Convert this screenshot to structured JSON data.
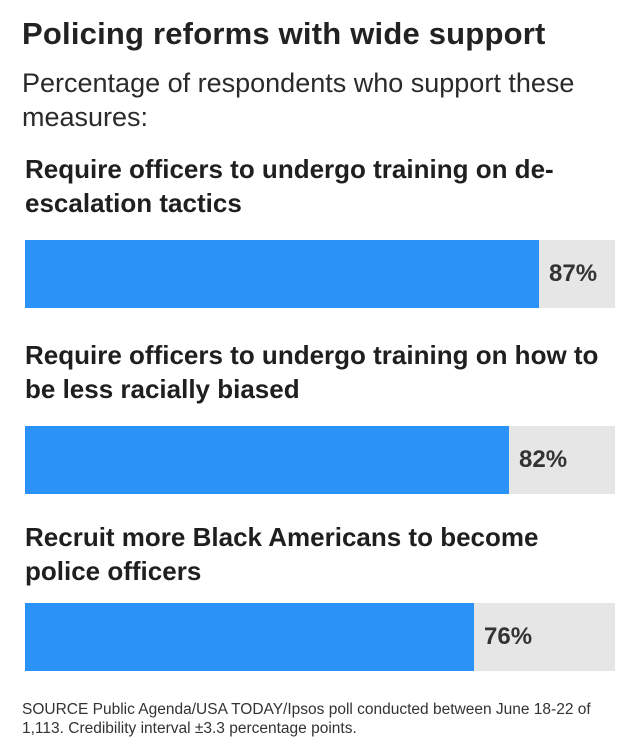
{
  "colors": {
    "bar": "#2b93f7",
    "track": "#e6e6e6"
  },
  "chart_data": {
    "type": "bar",
    "orientation": "horizontal",
    "title": "Policing reforms with wide support",
    "subtitle": "Percentage of respondents who support these measures:",
    "categories": [
      "Require officers to undergo training on de-escalation tactics",
      "Require officers to undergo training on how to be less racially biased",
      "Recruit more Black Americans to become police officers"
    ],
    "values": [
      87,
      82,
      76
    ],
    "value_labels": [
      "87%",
      "82%",
      "76%"
    ],
    "xlim": [
      0,
      100
    ],
    "unit": "%",
    "source": "SOURCE Public Agenda/USA TODAY/Ipsos poll conducted between June 18-22 of 1,113. Credibility interval ±3.3 percentage points."
  }
}
